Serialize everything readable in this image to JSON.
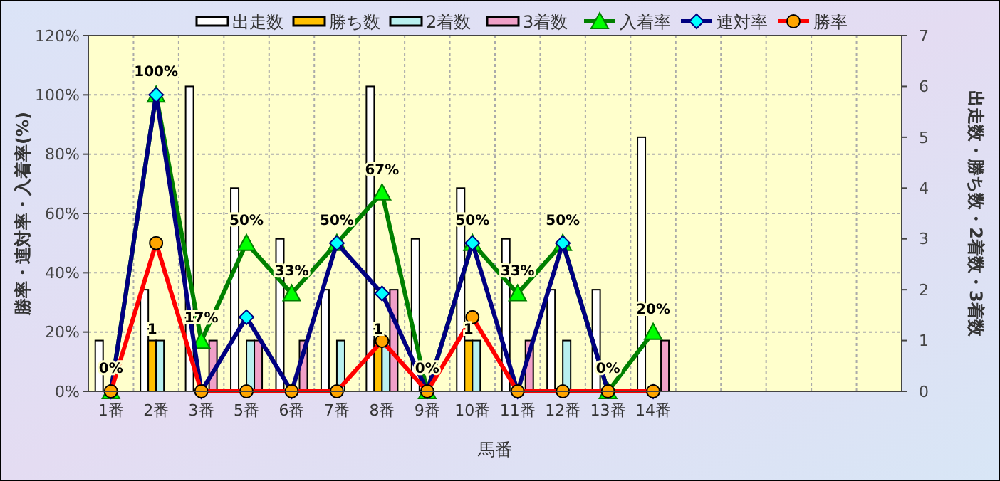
{
  "chart_data": {
    "type": "bar",
    "xlabel": "馬番",
    "ylabel": "勝率・連対率・入着率(%)",
    "y2label": "出走数・勝ち数・2着数・3着数",
    "categories": [
      "1番",
      "2番",
      "3番",
      "5番",
      "6番",
      "7番",
      "8番",
      "9番",
      "10番",
      "11番",
      "12番",
      "13番",
      "14番",
      null,
      null,
      null,
      null,
      null
    ],
    "series": [
      {
        "name": "出走数",
        "axis": "y2",
        "color": "#ffffff",
        "values": [
          1,
          2,
          6,
          4,
          3,
          2,
          6,
          3,
          4,
          3,
          2,
          2,
          5,
          null,
          null,
          null,
          null,
          null
        ]
      },
      {
        "name": "勝ち数",
        "axis": "y2",
        "color": "#ffc000",
        "values": [
          0,
          1,
          0,
          0,
          0,
          0,
          1,
          0,
          1,
          0,
          0,
          0,
          0,
          null,
          null,
          null,
          null,
          null
        ],
        "value_labels": [
          null,
          "1",
          null,
          null,
          null,
          null,
          "1",
          null,
          "1",
          null,
          null,
          null,
          null,
          null,
          null,
          null,
          null,
          null
        ]
      },
      {
        "name": "2着数",
        "axis": "y2",
        "color": "#b8f0f0",
        "values": [
          0,
          1,
          0,
          1,
          0,
          1,
          1,
          0,
          1,
          0,
          1,
          0,
          0,
          null,
          null,
          null,
          null,
          null
        ]
      },
      {
        "name": "3着数",
        "axis": "y2",
        "color": "#f0a0c8",
        "values": [
          0,
          0,
          1,
          1,
          1,
          0,
          2,
          0,
          0,
          1,
          0,
          0,
          1,
          null,
          null,
          null,
          null,
          null
        ]
      },
      {
        "name": "入着率",
        "type": "line",
        "marker": "triangle",
        "color": "#008000",
        "values": [
          0,
          100,
          17,
          50,
          33,
          50,
          67,
          0,
          50,
          33,
          50,
          0,
          20,
          null,
          null,
          null,
          null,
          null
        ],
        "value_labels": [
          "0%",
          "100%",
          "17%",
          "50%",
          "33%",
          "50%",
          "67%",
          "0%",
          "50%",
          "33%",
          "50%",
          "0%",
          "20%",
          null,
          null,
          null,
          null,
          null
        ]
      },
      {
        "name": "連対率",
        "type": "line",
        "marker": "diamond",
        "color": "#000080",
        "values": [
          0,
          100,
          0,
          25,
          0,
          50,
          33,
          0,
          50,
          0,
          50,
          0,
          0,
          null,
          null,
          null,
          null,
          null
        ]
      },
      {
        "name": "勝率",
        "type": "line",
        "marker": "circle",
        "color": "#ff0000",
        "values": [
          0,
          50,
          0,
          0,
          0,
          0,
          17,
          0,
          25,
          0,
          0,
          0,
          0,
          null,
          null,
          null,
          null,
          null
        ]
      }
    ],
    "ylim": [
      0,
      120
    ],
    "yticks": [
      {
        "value": 0,
        "label": "0%"
      },
      {
        "value": 20,
        "label": "20%"
      },
      {
        "value": 40,
        "label": "40%"
      },
      {
        "value": 60,
        "label": "60%"
      },
      {
        "value": 80,
        "label": "80%"
      },
      {
        "value": 100,
        "label": "100%"
      },
      {
        "value": 120,
        "label": "120%"
      }
    ],
    "y2lim": [
      0,
      7
    ],
    "y2ticks": [
      0,
      1,
      2,
      3,
      4,
      5,
      6,
      7
    ],
    "grid": true,
    "legend": "top",
    "line_style": "solid"
  }
}
